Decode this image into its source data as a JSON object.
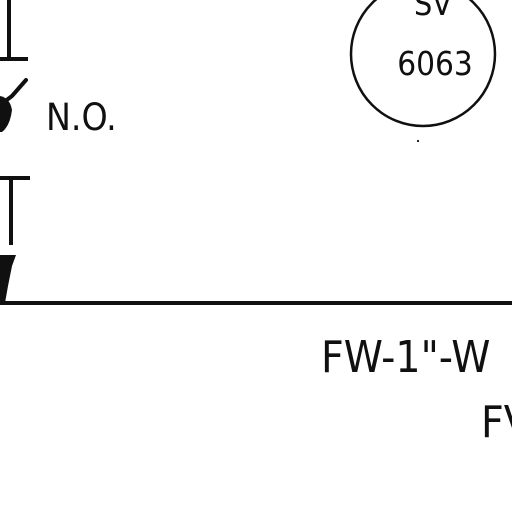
{
  "diagram": {
    "instrument_tag": {
      "line_1": "SV",
      "line_2": "6063"
    },
    "valve_position_label": "N.O.",
    "pipeline_label_line_1": "FW-1\"-W",
    "pipeline_label_line_2": "FV"
  },
  "colors": {
    "background": "#ffffff",
    "ink": "#101010"
  }
}
